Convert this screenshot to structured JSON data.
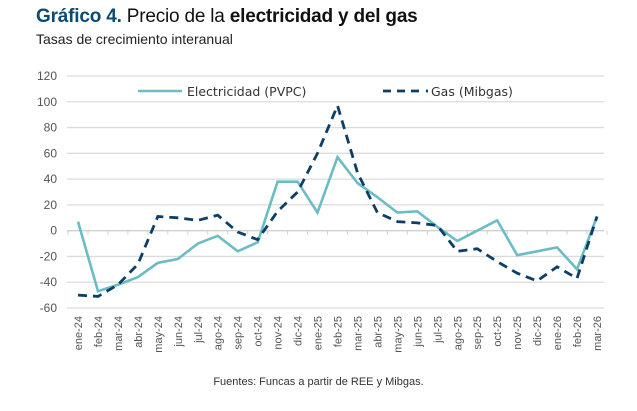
{
  "header": {
    "title_prefix": "Gráfico 4.",
    "title_regular": " Precio de la ",
    "title_bold": "electricidad y del gas",
    "subtitle": "Tasas de crecimiento interanual"
  },
  "footer": {
    "source": "Fuentes: Funcas a partir de REE y Mibgas."
  },
  "chart_data": {
    "type": "line",
    "title": "Gráfico 4. Precio de la electricidad y del gas",
    "subtitle": "Tasas de crecimiento interanual",
    "xlabel": "",
    "ylabel": "",
    "ylim": [
      -60,
      120
    ],
    "yticks": [
      -60,
      -40,
      -20,
      0,
      20,
      40,
      60,
      80,
      100,
      120
    ],
    "grid": true,
    "legend_position": "top-center",
    "categories": [
      "ene-24",
      "feb-24",
      "mar-24",
      "abr-24",
      "may-24",
      "jun-24",
      "jul-24",
      "ago-24",
      "sep-24",
      "oct-24",
      "nov-24",
      "dic-24",
      "ene-25",
      "feb-25",
      "mar-25",
      "abr-25",
      "may-25",
      "jun-25",
      "jul-25",
      "ago-25",
      "sep-25",
      "oct-25",
      "nov-25",
      "dic-25",
      "ene-26",
      "feb-26",
      "mar-26"
    ],
    "series": [
      {
        "name": "Electricidad (PVPC)",
        "style": "solid",
        "color": "#6bbcc4",
        "values": [
          7,
          -47,
          -42,
          -36,
          -25,
          -22,
          -10,
          -4,
          -16,
          -9,
          38,
          38,
          14,
          57,
          37,
          26,
          14,
          15,
          3,
          -8,
          0,
          8,
          -19,
          -16,
          -13,
          -30,
          11
        ]
      },
      {
        "name": "Gas (Mibgas)",
        "style": "dashed",
        "color": "#0d3f66",
        "values": [
          -50,
          -51,
          -42,
          -26,
          11,
          10,
          8,
          12,
          -1,
          -7,
          15,
          30,
          60,
          97,
          45,
          14,
          7,
          6,
          4,
          -16,
          -14,
          -24,
          -33,
          -39,
          -28,
          -37,
          11
        ]
      }
    ]
  }
}
